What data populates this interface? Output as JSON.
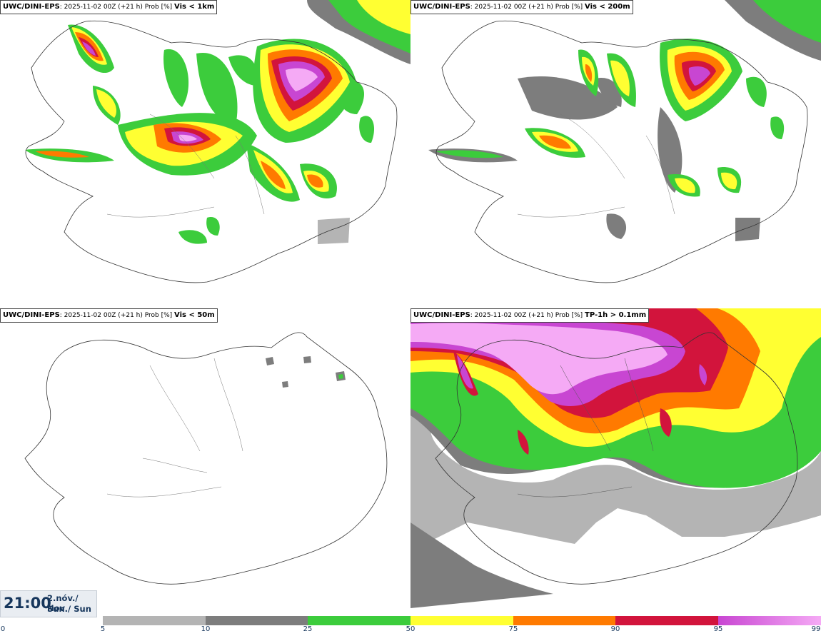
{
  "panels": [
    {
      "model": "UWC/DINI-EPS",
      "meta": ": 2025-11-02 00Z (+21 h) Prob [%] ",
      "var": "Vis < 1km"
    },
    {
      "model": "UWC/DINI-EPS",
      "meta": ": 2025-11-02 00Z (+21 h) Prob [%] ",
      "var": "Vis < 200m"
    },
    {
      "model": "UWC/DINI-EPS",
      "meta": ": 2025-11-02 00Z (+21 h) Prob [%] ",
      "var": "Vis < 50m"
    },
    {
      "model": "UWC/DINI-EPS",
      "meta": ": 2025-11-02 00Z (+21 h) Prob [%] ",
      "var": "TP-1h > 0.1mm"
    }
  ],
  "timebox": {
    "time": "21:00",
    "date_line1": "2.nóv./ Nov",
    "date_line2": "Sun./ Sun"
  },
  "colorbar": {
    "ticks": [
      "0",
      "5",
      "10",
      "25",
      "50",
      "75",
      "90",
      "95",
      "99"
    ],
    "colors": [
      "#ffffff",
      "#b4b4b4",
      "#7d7d7d",
      "#3ccc3c",
      "#ffff32",
      "#ff7a00",
      "#d2143c",
      "#c846d2",
      "#f5aaf5"
    ]
  },
  "map_colors": {
    "gray_light": "#b4b4b4",
    "gray_dark": "#7d7d7d",
    "green": "#3ccc3c",
    "yellow": "#ffff32",
    "orange": "#ff7a00",
    "red": "#d2143c",
    "magenta": "#c846d2",
    "pink": "#f5aaf5"
  }
}
